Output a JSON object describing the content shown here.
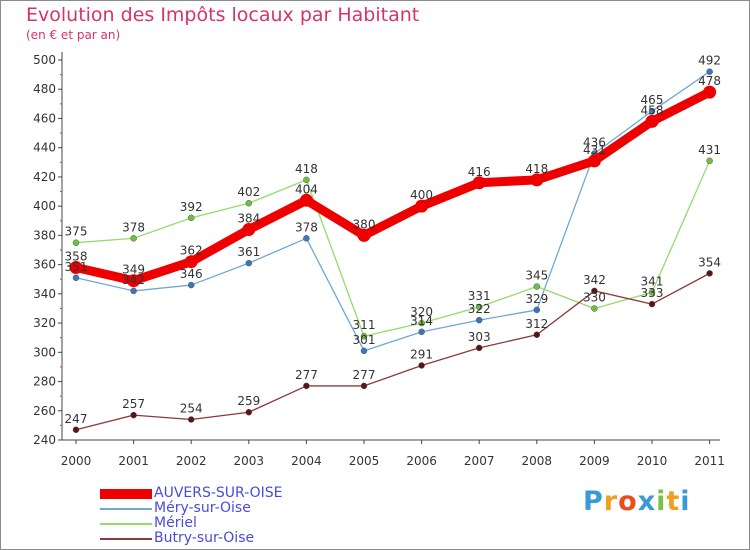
{
  "chart_data": {
    "type": "line",
    "title": "Evolution des Impôts locaux par Habitant",
    "subtitle": "(en € et par an)",
    "xlabel": "",
    "ylabel": "",
    "ylim": [
      240,
      500
    ],
    "ytick_step": 20,
    "grid": false,
    "legend_position": "bottom-left",
    "categories": [
      "2000",
      "2001",
      "2002",
      "2003",
      "2004",
      "2005",
      "2006",
      "2007",
      "2008",
      "2009",
      "2010",
      "2011"
    ],
    "series": [
      {
        "name": "Méry-sur-Oise",
        "color": "#6fa8d6",
        "marker": "#3a78b8",
        "values": [
          351,
          342,
          346,
          361,
          378,
          301,
          314,
          322,
          329,
          436,
          465,
          492
        ]
      },
      {
        "name": "Mériel",
        "color": "#93dc6e",
        "marker": "#6cc23f",
        "values": [
          375,
          378,
          392,
          402,
          418,
          311,
          320,
          331,
          345,
          330,
          341,
          431
        ]
      },
      {
        "name": "Butry-sur-Oise",
        "color": "#8a3a3a",
        "marker": "#5a1414",
        "values": [
          247,
          257,
          254,
          259,
          277,
          277,
          291,
          303,
          312,
          342,
          333,
          354
        ]
      },
      {
        "name": "AUVERS-SUR-OISE",
        "color": "#ee0000",
        "marker": "#ee0000",
        "values": [
          358,
          349,
          362,
          384,
          404,
          380,
          400,
          416,
          418,
          431,
          458,
          478
        ]
      }
    ]
  },
  "legend": [
    {
      "name": "AUVERS-SUR-OISE",
      "color": "#ee0000"
    },
    {
      "name": "Méry-sur-Oise",
      "color": "#6fa8d6"
    },
    {
      "name": "Mériel",
      "color": "#93dc6e"
    },
    {
      "name": "Butry-sur-Oise",
      "color": "#8a3a3a"
    }
  ],
  "logo": {
    "letters": [
      "P",
      "r",
      "o",
      "x",
      "i",
      "t",
      "i"
    ],
    "colors": [
      "#3a9ad9",
      "#f0a020",
      "#e94e1b",
      "#3a9ad9",
      "#7cc242",
      "#f0a020",
      "#3a9ad9"
    ]
  }
}
